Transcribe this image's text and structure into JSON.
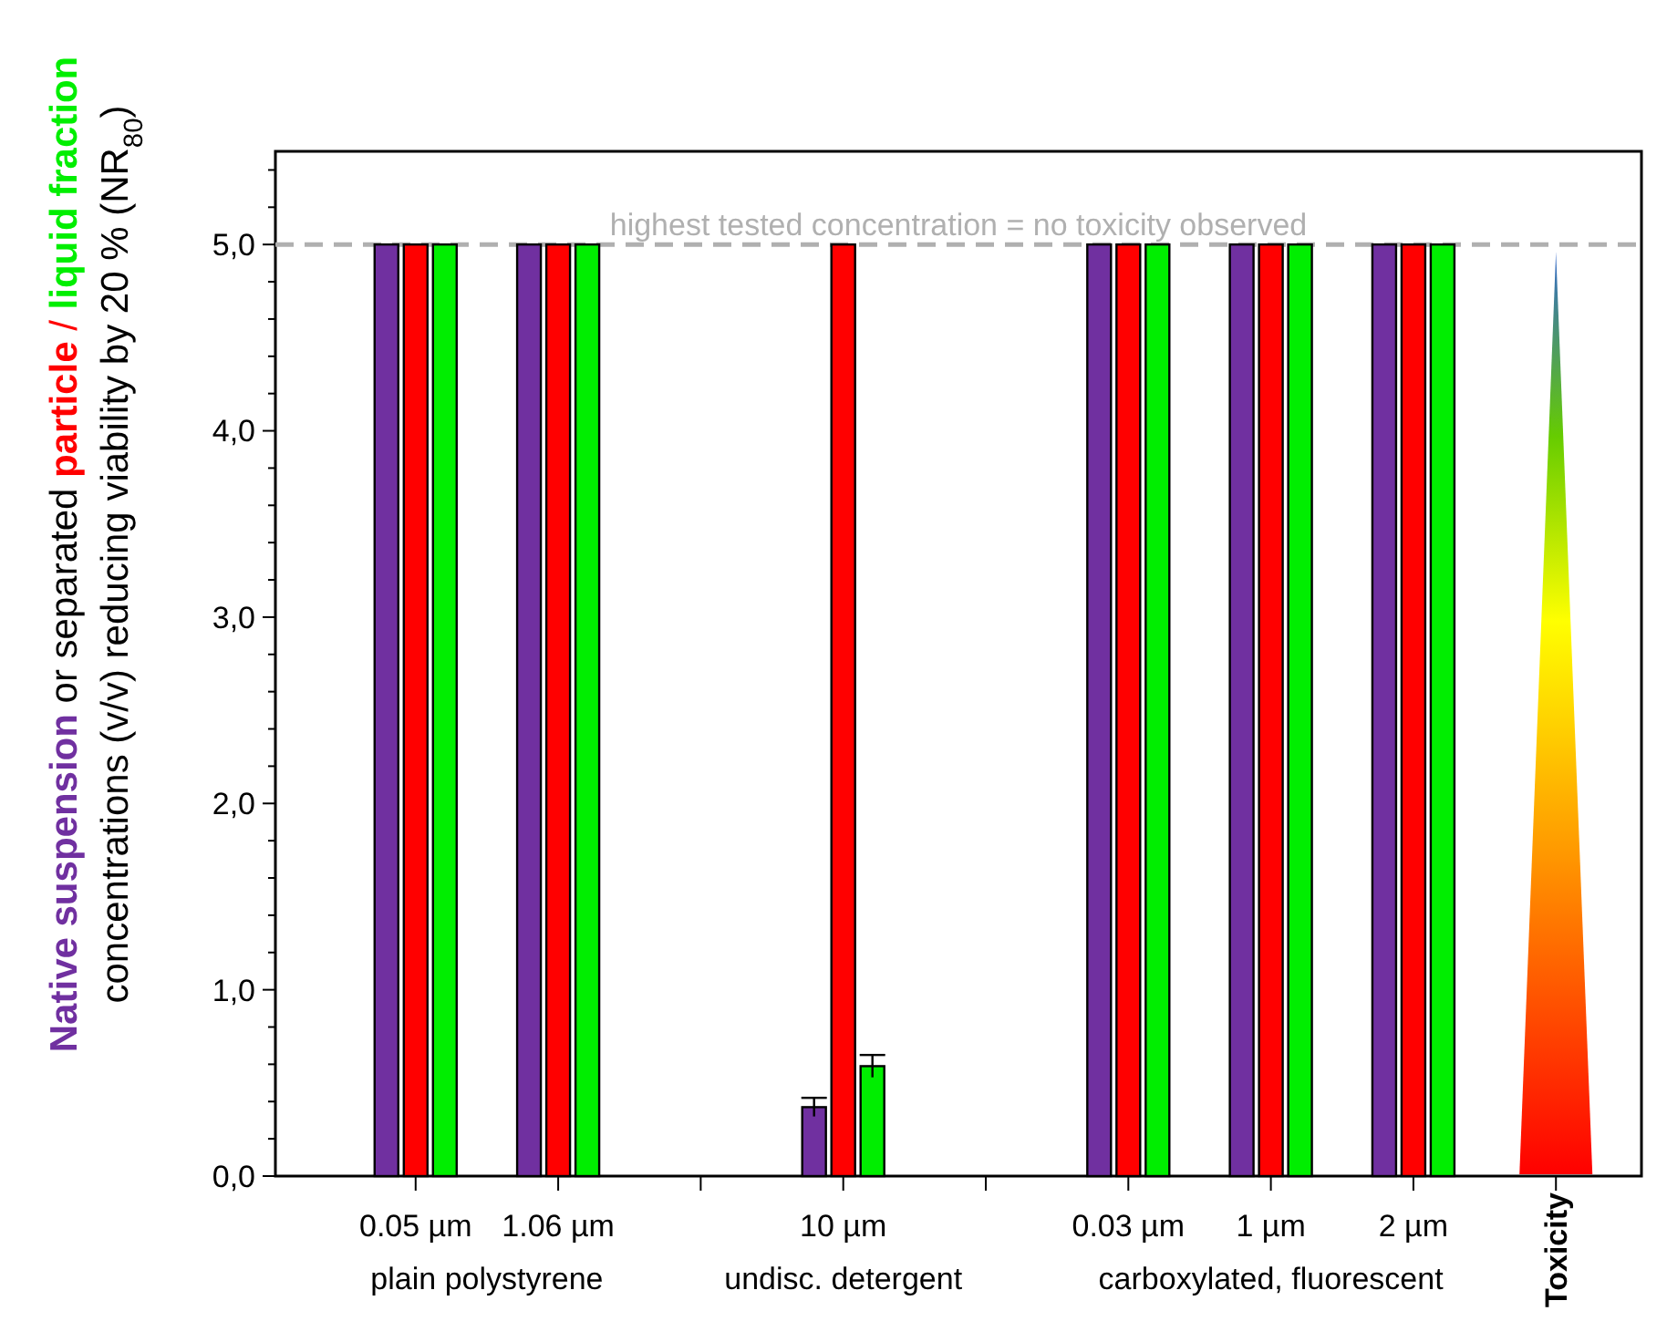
{
  "chart_data": {
    "type": "bar",
    "ylabel": "concentrations (v/v) reducing viability by 20 % (NR$_{80}$)",
    "categories": [
      "0.05 µm",
      "1.06 µm",
      null,
      "10 µm",
      null,
      "0.03 µm",
      "1 µm",
      "2 µm",
      null
    ],
    "series": [
      {
        "name": "Native suspension",
        "color": "#7030a0",
        "values": [
          5.0,
          5.0,
          null,
          0.37,
          null,
          5.0,
          5.0,
          5.0,
          null
        ],
        "errors": [
          null,
          null,
          null,
          0.05,
          null,
          null,
          null,
          null,
          null
        ]
      },
      {
        "name": "particle",
        "color": "#ff0000",
        "values": [
          5.0,
          5.0,
          null,
          5.0,
          null,
          5.0,
          5.0,
          5.0,
          null
        ]
      },
      {
        "name": "liquid fraction",
        "color": "#00ee00",
        "values": [
          5.0,
          5.0,
          null,
          0.59,
          null,
          5.0,
          5.0,
          5.0,
          null
        ],
        "errors": [
          null,
          null,
          null,
          0.06,
          null,
          null,
          null,
          null,
          null
        ]
      }
    ],
    "ylim": [
      0,
      5.5
    ],
    "yticks": [
      {
        "value": 0,
        "label": "0,0"
      },
      {
        "value": 0.2,
        "label": null
      },
      {
        "value": 0.4,
        "label": null
      },
      {
        "value": 0.6,
        "label": null
      },
      {
        "value": 0.8,
        "label": null
      },
      {
        "value": 1,
        "label": "1,0"
      },
      {
        "value": 1.2,
        "label": null
      },
      {
        "value": 1.4,
        "label": null
      },
      {
        "value": 1.6,
        "label": null
      },
      {
        "value": 1.8,
        "label": null
      },
      {
        "value": 2,
        "label": "2,0"
      },
      {
        "value": 2.2,
        "label": null
      },
      {
        "value": 2.4,
        "label": null
      },
      {
        "value": 2.6,
        "label": null
      },
      {
        "value": 2.8,
        "label": null
      },
      {
        "value": 3,
        "label": "3,0"
      },
      {
        "value": 3.2,
        "label": null
      },
      {
        "value": 3.4,
        "label": null
      },
      {
        "value": 3.6,
        "label": null
      },
      {
        "value": 3.8,
        "label": null
      },
      {
        "value": 4,
        "label": "4,0"
      },
      {
        "value": 4.2,
        "label": null
      },
      {
        "value": 4.4,
        "label": null
      },
      {
        "value": 4.6,
        "label": null
      },
      {
        "value": 4.8,
        "label": null
      },
      {
        "value": 5,
        "label": "5,0"
      },
      {
        "value": 5.2,
        "label": null
      },
      {
        "value": 5.4,
        "label": null
      }
    ],
    "ref_lines": [
      {
        "axis": "y",
        "value": 5,
        "label": "highest tested concentration = no toxicity observed",
        "color": "#b0b0b0",
        "line_style": "dashed"
      }
    ],
    "annotations": [
      "or separated",
      "/",
      "plain polystyrene",
      "undisc. detergent",
      "carboxylated, fluorescent",
      "Toxicity"
    ]
  }
}
